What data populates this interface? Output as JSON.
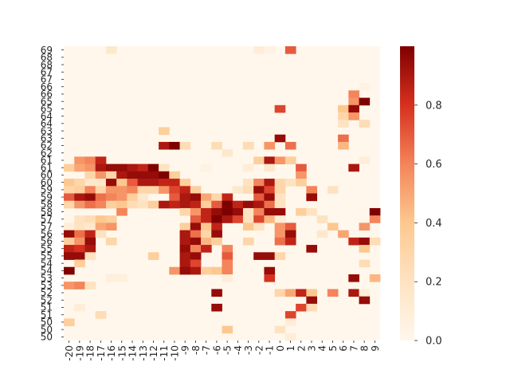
{
  "chart_data": {
    "type": "heatmap",
    "title": "",
    "xlabel": "",
    "ylabel": "",
    "x_categories": [
      "-20",
      "-19",
      "-18",
      "-17",
      "-16",
      "-15",
      "-14",
      "-13",
      "-12",
      "-11",
      "-10",
      "-9",
      "-8",
      "-7",
      "-6",
      "-5",
      "-4",
      "-3",
      "-2",
      "-1",
      "0",
      "1",
      "2",
      "3",
      "4",
      "5",
      "6",
      "7",
      "8",
      "9"
    ],
    "y_categories": [
      "69",
      "68",
      "68",
      "67",
      "67",
      "66",
      "66",
      "65",
      "65",
      "64",
      "64",
      "63",
      "63",
      "62",
      "62",
      "61",
      "61",
      "60",
      "60",
      "59",
      "59",
      "58",
      "58",
      "57",
      "57",
      "56",
      "56",
      "55",
      "55",
      "54",
      "54",
      "53",
      "53",
      "52",
      "52",
      "51",
      "51",
      "50",
      "50",
      "50"
    ],
    "colorbar": {
      "min": 0.0,
      "max": 1.0,
      "ticks": [
        "0.0",
        "0.2",
        "0.4",
        "0.6",
        "0.8"
      ],
      "colormap": "OrRd"
    },
    "cells": [
      [
        0,
        4,
        0.15
      ],
      [
        0,
        18,
        0.1
      ],
      [
        0,
        19,
        0.05
      ],
      [
        0,
        21,
        0.7
      ],
      [
        5,
        28,
        0.05
      ],
      [
        6,
        27,
        0.6
      ],
      [
        7,
        27,
        0.55
      ],
      [
        7,
        28,
        1.0
      ],
      [
        8,
        20,
        0.75
      ],
      [
        8,
        26,
        0.4
      ],
      [
        8,
        27,
        0.95
      ],
      [
        9,
        26,
        0.3
      ],
      [
        9,
        27,
        0.55
      ],
      [
        10,
        26,
        0.2
      ],
      [
        10,
        28,
        0.25
      ],
      [
        11,
        9,
        0.35
      ],
      [
        12,
        20,
        0.95
      ],
      [
        12,
        26,
        0.65
      ],
      [
        13,
        9,
        0.9
      ],
      [
        13,
        10,
        1.0
      ],
      [
        13,
        11,
        0.25
      ],
      [
        13,
        14,
        0.25
      ],
      [
        13,
        17,
        0.25
      ],
      [
        13,
        19,
        0.55
      ],
      [
        13,
        21,
        0.65
      ],
      [
        13,
        26,
        0.45
      ],
      [
        14,
        15,
        0.15
      ],
      [
        15,
        1,
        0.55
      ],
      [
        15,
        2,
        0.6
      ],
      [
        15,
        3,
        0.85
      ],
      [
        15,
        18,
        0.35
      ],
      [
        15,
        19,
        0.9
      ],
      [
        15,
        20,
        0.55
      ],
      [
        15,
        21,
        0.35
      ],
      [
        15,
        28,
        0.1
      ],
      [
        16,
        0,
        0.35
      ],
      [
        16,
        1,
        0.5
      ],
      [
        16,
        2,
        0.55
      ],
      [
        16,
        3,
        0.9
      ],
      [
        16,
        4,
        0.95
      ],
      [
        16,
        5,
        0.95
      ],
      [
        16,
        6,
        0.9
      ],
      [
        16,
        7,
        0.85
      ],
      [
        16,
        8,
        1.0
      ],
      [
        16,
        9,
        0.2
      ],
      [
        16,
        13,
        0.05
      ],
      [
        16,
        17,
        0.1
      ],
      [
        16,
        19,
        0.15
      ],
      [
        16,
        22,
        0.7
      ],
      [
        16,
        27,
        0.9
      ],
      [
        17,
        2,
        0.3
      ],
      [
        17,
        3,
        0.55
      ],
      [
        17,
        4,
        0.3
      ],
      [
        17,
        5,
        0.9
      ],
      [
        17,
        6,
        0.95
      ],
      [
        17,
        7,
        0.95
      ],
      [
        17,
        8,
        0.95
      ],
      [
        17,
        9,
        1.0
      ],
      [
        17,
        10,
        0.35
      ],
      [
        17,
        22,
        0.55
      ],
      [
        18,
        0,
        0.4
      ],
      [
        18,
        1,
        0.3
      ],
      [
        18,
        2,
        0.15
      ],
      [
        18,
        3,
        0.15
      ],
      [
        18,
        4,
        0.95
      ],
      [
        18,
        5,
        0.4
      ],
      [
        18,
        6,
        0.7
      ],
      [
        18,
        7,
        0.9
      ],
      [
        18,
        8,
        0.9
      ],
      [
        18,
        9,
        0.85
      ],
      [
        18,
        10,
        0.85
      ],
      [
        18,
        11,
        0.35
      ],
      [
        18,
        17,
        0.2
      ],
      [
        18,
        18,
        0.6
      ],
      [
        18,
        19,
        0.9
      ],
      [
        18,
        20,
        0.3
      ],
      [
        18,
        21,
        0.2
      ],
      [
        18,
        22,
        0.35
      ],
      [
        19,
        0,
        0.3
      ],
      [
        19,
        1,
        0.35
      ],
      [
        19,
        2,
        0.6
      ],
      [
        19,
        3,
        0.3
      ],
      [
        19,
        4,
        0.55
      ],
      [
        19,
        5,
        0.55
      ],
      [
        19,
        6,
        0.6
      ],
      [
        19,
        7,
        0.3
      ],
      [
        19,
        8,
        0.3
      ],
      [
        19,
        9,
        0.55
      ],
      [
        19,
        10,
        0.75
      ],
      [
        19,
        11,
        0.85
      ],
      [
        19,
        12,
        0.35
      ],
      [
        19,
        16,
        0.15
      ],
      [
        19,
        17,
        0.25
      ],
      [
        19,
        18,
        0.95
      ],
      [
        19,
        19,
        0.75
      ],
      [
        19,
        20,
        0.3
      ],
      [
        19,
        23,
        0.6
      ],
      [
        19,
        25,
        0.2
      ],
      [
        20,
        0,
        0.7
      ],
      [
        20,
        1,
        0.9
      ],
      [
        20,
        2,
        0.95
      ],
      [
        20,
        3,
        0.65
      ],
      [
        20,
        4,
        0.6
      ],
      [
        20,
        5,
        0.55
      ],
      [
        20,
        6,
        0.35
      ],
      [
        20,
        7,
        0.15
      ],
      [
        20,
        10,
        0.7
      ],
      [
        20,
        11,
        0.9
      ],
      [
        20,
        12,
        0.95
      ],
      [
        20,
        13,
        0.5
      ],
      [
        20,
        14,
        0.3
      ],
      [
        20,
        15,
        0.85
      ],
      [
        20,
        18,
        0.7
      ],
      [
        20,
        19,
        0.95
      ],
      [
        20,
        20,
        0.2
      ],
      [
        20,
        23,
        0.95
      ],
      [
        21,
        0,
        0.3
      ],
      [
        21,
        1,
        0.55
      ],
      [
        21,
        2,
        0.65
      ],
      [
        21,
        3,
        0.6
      ],
      [
        21,
        4,
        0.35
      ],
      [
        21,
        5,
        0.4
      ],
      [
        21,
        6,
        0.25
      ],
      [
        21,
        7,
        0.2
      ],
      [
        21,
        8,
        0.35
      ],
      [
        21,
        9,
        0.9
      ],
      [
        21,
        10,
        0.85
      ],
      [
        21,
        11,
        0.9
      ],
      [
        21,
        12,
        0.85
      ],
      [
        21,
        13,
        0.35
      ],
      [
        21,
        14,
        0.7
      ],
      [
        21,
        15,
        1.0
      ],
      [
        21,
        16,
        0.85
      ],
      [
        21,
        17,
        0.95
      ],
      [
        21,
        18,
        0.9
      ],
      [
        21,
        19,
        0.65
      ],
      [
        21,
        20,
        0.2
      ],
      [
        22,
        5,
        0.6
      ],
      [
        22,
        11,
        0.3
      ],
      [
        22,
        12,
        0.55
      ],
      [
        22,
        13,
        0.85
      ],
      [
        22,
        14,
        0.95
      ],
      [
        22,
        15,
        1.0
      ],
      [
        22,
        16,
        0.95
      ],
      [
        22,
        17,
        0.2
      ],
      [
        22,
        18,
        0.6
      ],
      [
        22,
        19,
        0.95
      ],
      [
        22,
        20,
        0.95
      ],
      [
        22,
        22,
        0.35
      ],
      [
        22,
        23,
        0.2
      ],
      [
        22,
        29,
        1.0
      ],
      [
        23,
        1,
        0.2
      ],
      [
        23,
        2,
        0.25
      ],
      [
        23,
        3,
        0.4
      ],
      [
        23,
        4,
        0.35
      ],
      [
        23,
        12,
        0.7
      ],
      [
        23,
        13,
        0.85
      ],
      [
        23,
        14,
        1.0
      ],
      [
        23,
        15,
        0.9
      ],
      [
        23,
        16,
        0.75
      ],
      [
        23,
        17,
        0.2
      ],
      [
        23,
        18,
        0.75
      ],
      [
        23,
        19,
        0.45
      ],
      [
        23,
        20,
        0.1
      ],
      [
        23,
        24,
        0.2
      ],
      [
        23,
        29,
        0.6
      ],
      [
        24,
        0,
        0.1
      ],
      [
        24,
        1,
        0.2
      ],
      [
        24,
        2,
        0.15
      ],
      [
        24,
        3,
        0.5
      ],
      [
        24,
        4,
        0.55
      ],
      [
        24,
        11,
        0.35
      ],
      [
        24,
        12,
        0.95
      ],
      [
        24,
        13,
        0.4
      ],
      [
        24,
        14,
        0.85
      ],
      [
        24,
        17,
        0.4
      ],
      [
        24,
        18,
        0.2
      ],
      [
        24,
        20,
        0.55
      ],
      [
        24,
        21,
        0.7
      ],
      [
        24,
        25,
        0.4
      ],
      [
        24,
        28,
        0.55
      ],
      [
        25,
        0,
        0.95
      ],
      [
        25,
        1,
        0.65
      ],
      [
        25,
        2,
        0.85
      ],
      [
        25,
        3,
        0.2
      ],
      [
        25,
        11,
        0.9
      ],
      [
        25,
        12,
        0.65
      ],
      [
        25,
        13,
        0.3
      ],
      [
        25,
        14,
        0.95
      ],
      [
        25,
        20,
        0.55
      ],
      [
        25,
        21,
        0.95
      ],
      [
        25,
        24,
        0.15
      ],
      [
        25,
        26,
        0.5
      ],
      [
        26,
        0,
        0.35
      ],
      [
        26,
        1,
        0.55
      ],
      [
        26,
        2,
        0.95
      ],
      [
        26,
        4,
        0.3
      ],
      [
        26,
        11,
        0.9
      ],
      [
        26,
        12,
        0.95
      ],
      [
        26,
        13,
        0.45
      ],
      [
        26,
        14,
        0.35
      ],
      [
        26,
        17,
        0.3
      ],
      [
        26,
        20,
        0.65
      ],
      [
        26,
        21,
        0.85
      ],
      [
        26,
        27,
        0.85
      ],
      [
        26,
        28,
        0.95
      ],
      [
        26,
        29,
        0.25
      ],
      [
        27,
        0,
        0.85
      ],
      [
        27,
        1,
        0.8
      ],
      [
        27,
        2,
        0.9
      ],
      [
        27,
        11,
        0.95
      ],
      [
        27,
        12,
        0.6
      ],
      [
        27,
        13,
        0.85
      ],
      [
        27,
        15,
        0.6
      ],
      [
        27,
        23,
        0.95
      ],
      [
        27,
        28,
        0.4
      ],
      [
        28,
        0,
        0.95
      ],
      [
        28,
        1,
        0.95
      ],
      [
        28,
        2,
        0.2
      ],
      [
        28,
        8,
        0.35
      ],
      [
        28,
        11,
        0.9
      ],
      [
        28,
        12,
        0.95
      ],
      [
        28,
        15,
        0.7
      ],
      [
        28,
        18,
        0.95
      ],
      [
        28,
        19,
        0.95
      ],
      [
        28,
        20,
        0.3
      ],
      [
        29,
        1,
        0.35
      ],
      [
        29,
        11,
        0.9
      ],
      [
        29,
        12,
        0.75
      ],
      [
        29,
        15,
        0.6
      ],
      [
        29,
        28,
        0.25
      ],
      [
        30,
        0,
        1.0
      ],
      [
        30,
        10,
        0.55
      ],
      [
        30,
        11,
        0.95
      ],
      [
        30,
        12,
        0.9
      ],
      [
        30,
        13,
        0.35
      ],
      [
        30,
        14,
        0.4
      ],
      [
        30,
        15,
        0.6
      ],
      [
        30,
        19,
        0.95
      ],
      [
        31,
        4,
        0.08
      ],
      [
        31,
        5,
        0.08
      ],
      [
        31,
        15,
        0.1
      ],
      [
        31,
        19,
        0.8
      ],
      [
        31,
        27,
        0.95
      ],
      [
        31,
        29,
        0.45
      ],
      [
        32,
        0,
        0.55
      ],
      [
        32,
        1,
        0.6
      ],
      [
        32,
        2,
        0.2
      ],
      [
        33,
        14,
        0.95
      ],
      [
        33,
        20,
        0.3
      ],
      [
        33,
        21,
        0.5
      ],
      [
        33,
        22,
        0.85
      ],
      [
        33,
        23,
        0.4
      ],
      [
        33,
        25,
        0.6
      ],
      [
        33,
        27,
        0.9
      ],
      [
        33,
        28,
        0.1
      ],
      [
        34,
        23,
        0.95
      ],
      [
        34,
        28,
        0.95
      ],
      [
        35,
        1,
        0.1
      ],
      [
        35,
        14,
        0.95
      ],
      [
        35,
        22,
        0.75
      ],
      [
        35,
        23,
        0.25
      ],
      [
        36,
        3,
        0.25
      ],
      [
        36,
        21,
        0.75
      ],
      [
        37,
        0,
        0.35
      ],
      [
        37,
        21,
        0.1
      ],
      [
        38,
        15,
        0.4
      ],
      [
        38,
        20,
        0.2
      ],
      [
        39,
        21,
        0.1
      ]
    ]
  }
}
